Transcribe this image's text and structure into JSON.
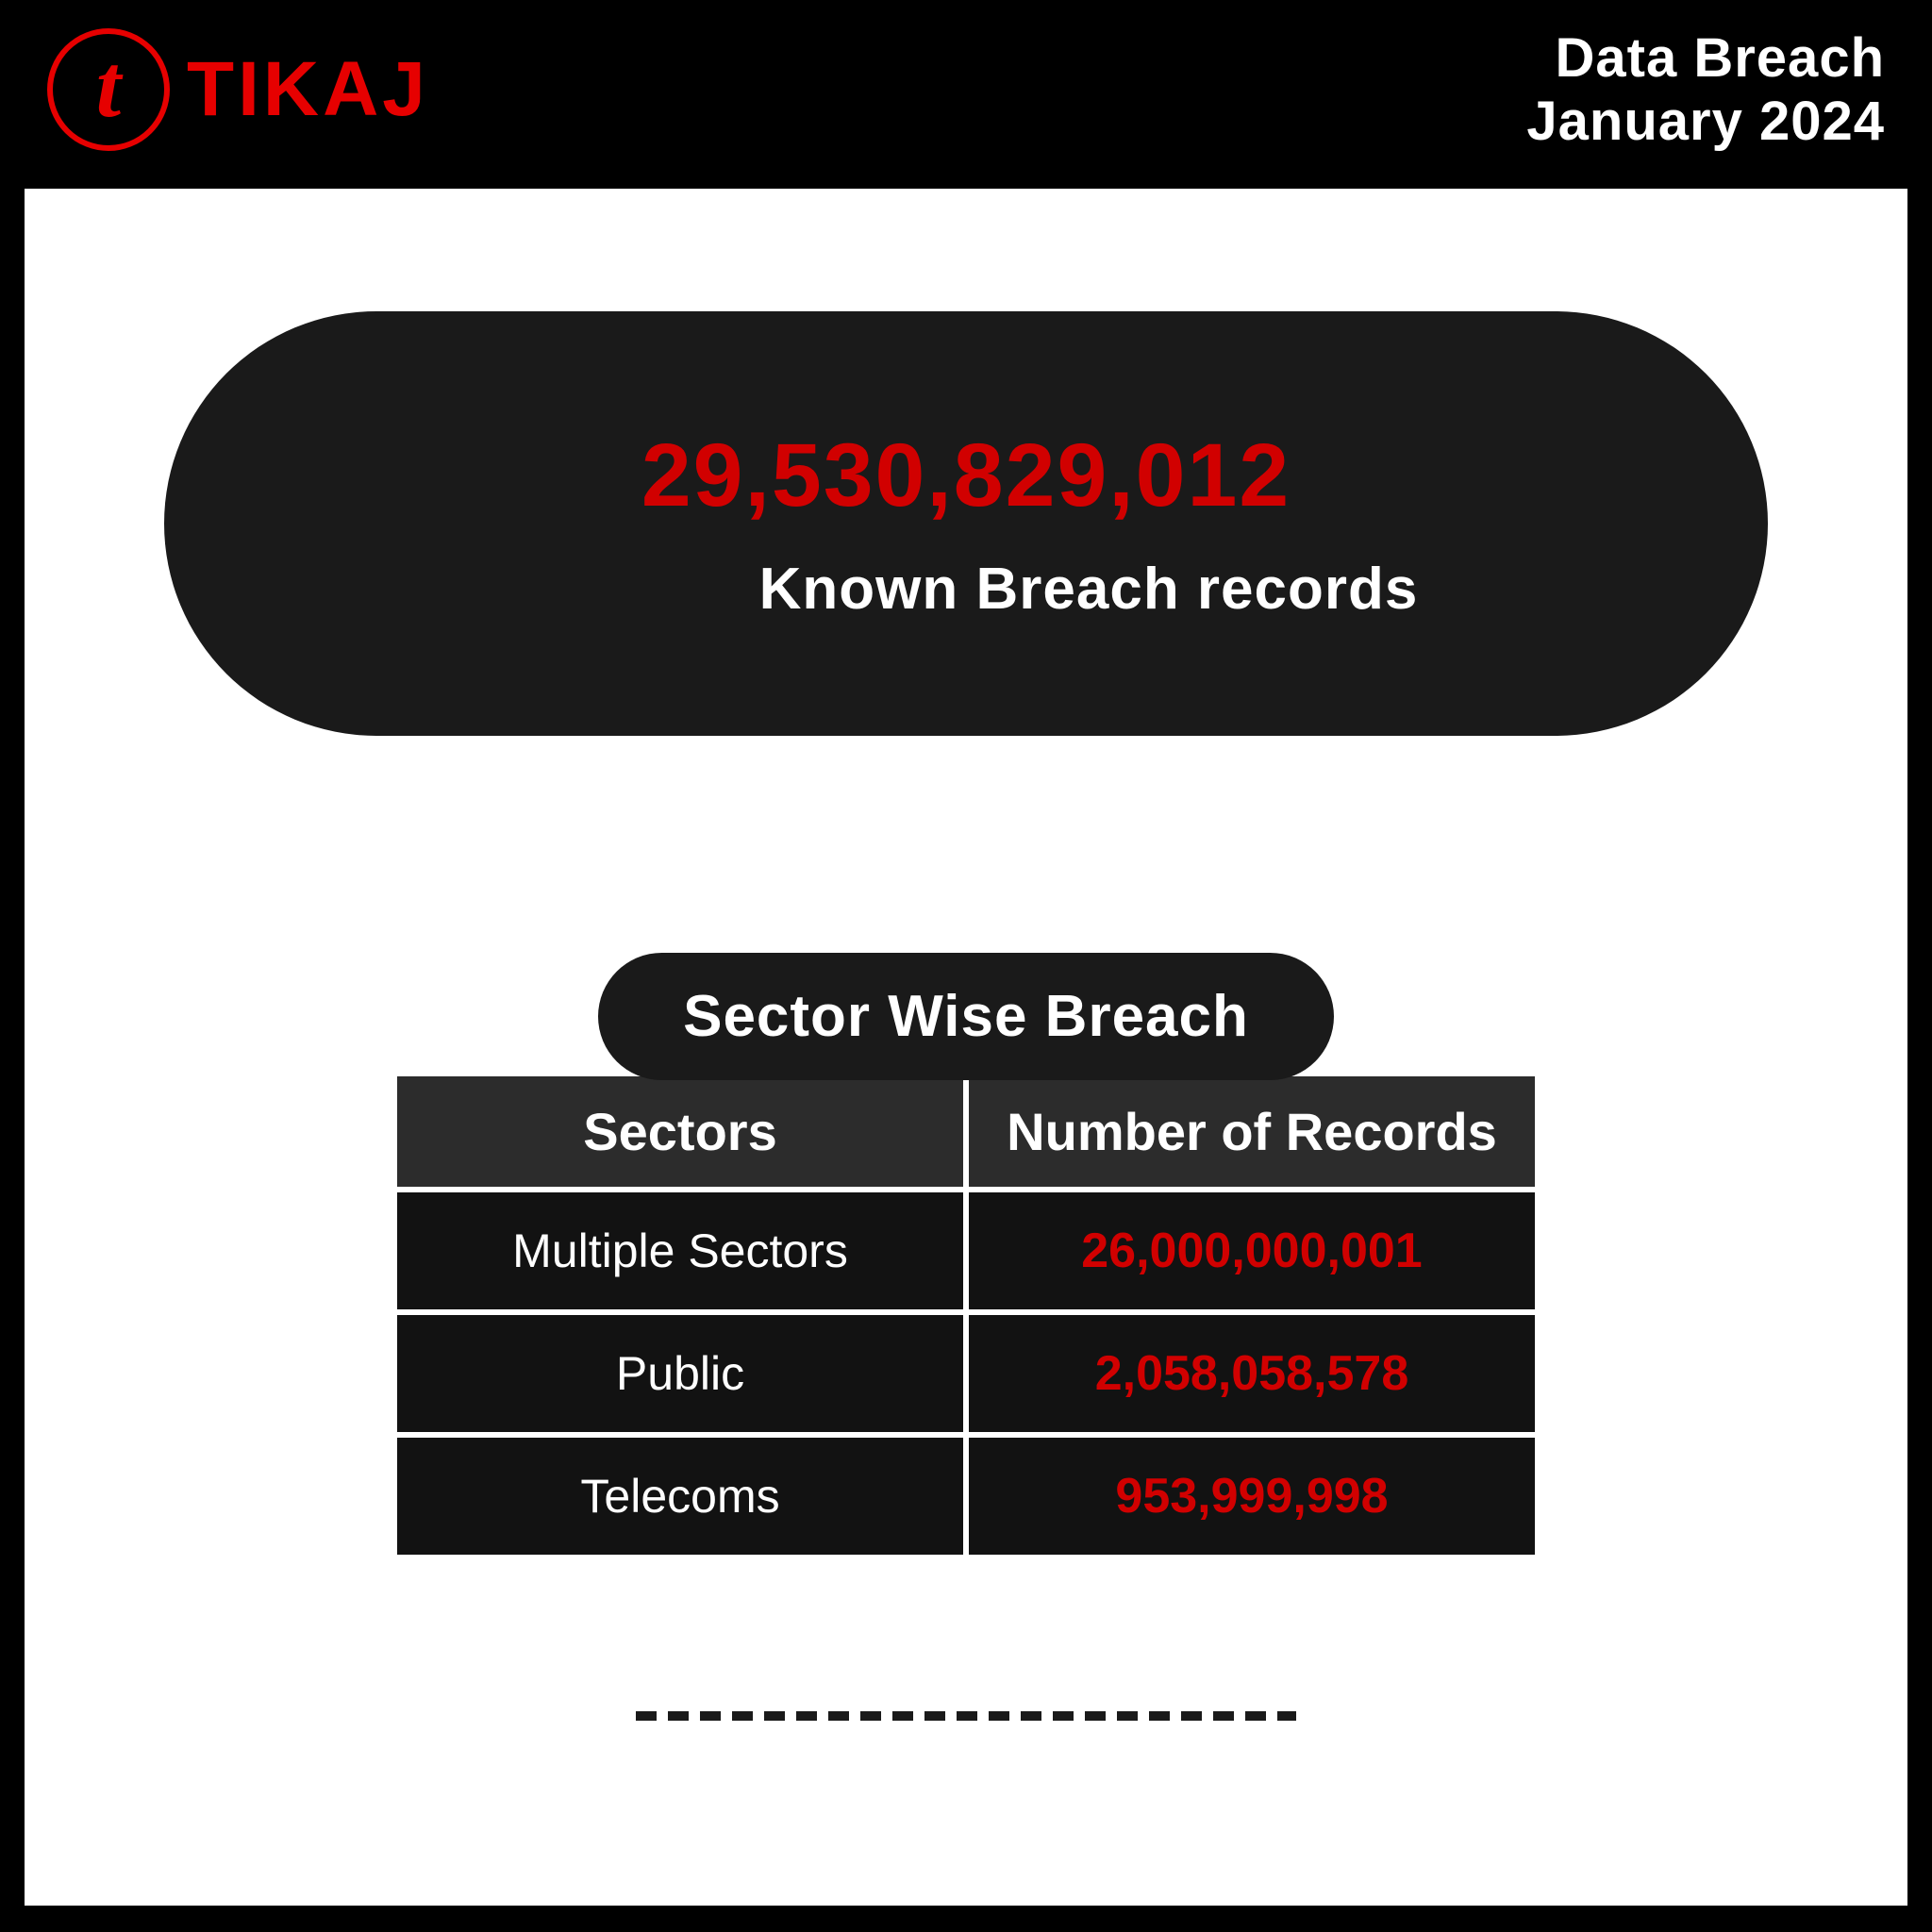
{
  "brand": {
    "name": "TIKAJ",
    "logo_letter": "t",
    "accent_color": "#e60000"
  },
  "header": {
    "title": "Data Breach",
    "date": "January 2024"
  },
  "hero": {
    "value": "29,530,829,012",
    "label": "Known Breach records",
    "background_color": "#1a1a1a",
    "value_color": "#d10000",
    "label_color": "#ffffff"
  },
  "section": {
    "title": "Sector Wise Breach"
  },
  "table": {
    "type": "table",
    "columns": [
      "Sectors",
      "Number of Records"
    ],
    "rows": [
      {
        "sector": "Multiple Sectors",
        "records": "26,000,000,001"
      },
      {
        "sector": "Public",
        "records": "2,058,058,578"
      },
      {
        "sector": "Telecoms",
        "records": "953,999,998"
      }
    ],
    "header_bg": "#2c2c2c",
    "cell_bg": "#121212",
    "sector_color": "#ffffff",
    "records_color": "#d10000",
    "header_fontsize": 56,
    "cell_fontsize": 50
  },
  "colors": {
    "page_bg": "#000000",
    "panel_bg": "#ffffff",
    "text_white": "#ffffff",
    "text_red": "#d10000"
  }
}
